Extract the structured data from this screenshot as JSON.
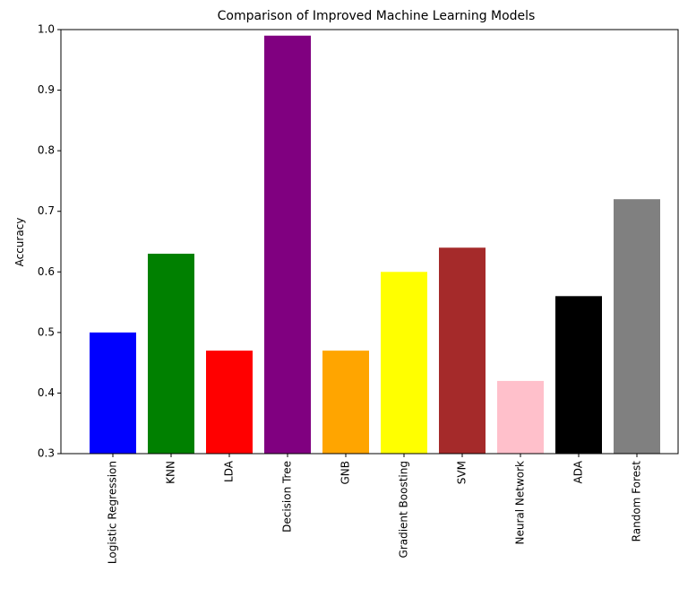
{
  "chart_data": {
    "type": "bar",
    "title": "Comparison of Improved Machine Learning Models",
    "ylabel": "Accuracy",
    "categories": [
      "Logistic Regression",
      "KNN",
      "LDA",
      "Decision Tree",
      "GNB",
      "Gradient Boosting",
      "SVM",
      "Neural Network",
      "ADA",
      "Random Forest"
    ],
    "values": [
      0.5,
      0.63,
      0.47,
      0.99,
      0.47,
      0.6,
      0.64,
      0.42,
      0.56,
      0.72
    ],
    "colors": [
      "blue",
      "green",
      "red",
      "purple",
      "orange",
      "yellow",
      "brown",
      "pink",
      "black",
      "gray"
    ],
    "ylim": [
      0.3,
      1.0
    ],
    "yticks": [
      0.3,
      0.4,
      0.5,
      0.6,
      0.7,
      0.8,
      0.9,
      {
        "value": 1.0,
        "label": "1.0"
      }
    ],
    "grid": false
  }
}
